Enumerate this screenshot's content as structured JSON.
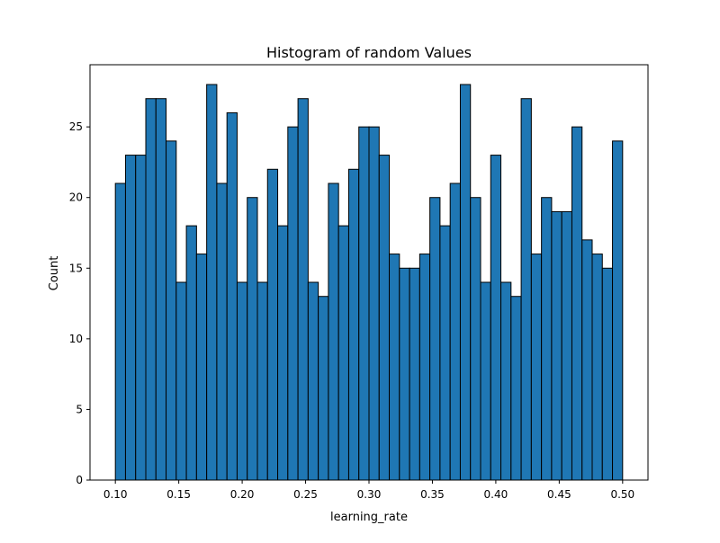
{
  "chart_data": {
    "type": "bar",
    "title": "Histogram of random Values",
    "xlabel": "learning_rate",
    "ylabel": "Count",
    "bin_start": 0.1,
    "bin_end": 0.5,
    "bin_count": 50,
    "values": [
      21,
      23,
      23,
      27,
      27,
      24,
      14,
      18,
      16,
      28,
      21,
      26,
      14,
      20,
      14,
      22,
      18,
      25,
      27,
      14,
      13,
      21,
      18,
      22,
      25,
      25,
      23,
      16,
      15,
      15,
      16,
      20,
      18,
      21,
      28,
      20,
      14,
      23,
      14,
      13,
      27,
      16,
      20,
      19,
      19,
      25,
      17,
      16,
      15,
      24
    ],
    "xlim": [
      0.08,
      0.52
    ],
    "ylim": [
      0,
      29.4
    ],
    "x_ticks": [
      0.1,
      0.15,
      0.2,
      0.25,
      0.3,
      0.35,
      0.4,
      0.45,
      0.5
    ],
    "x_tick_labels": [
      "0.10",
      "0.15",
      "0.20",
      "0.25",
      "0.30",
      "0.35",
      "0.40",
      "0.45",
      "0.50"
    ],
    "y_ticks": [
      0,
      5,
      10,
      15,
      20,
      25
    ],
    "y_tick_labels": [
      "0",
      "5",
      "10",
      "15",
      "20",
      "25"
    ],
    "bar_color": "#1f77b4",
    "edge_color": "#000000",
    "grid": false
  }
}
